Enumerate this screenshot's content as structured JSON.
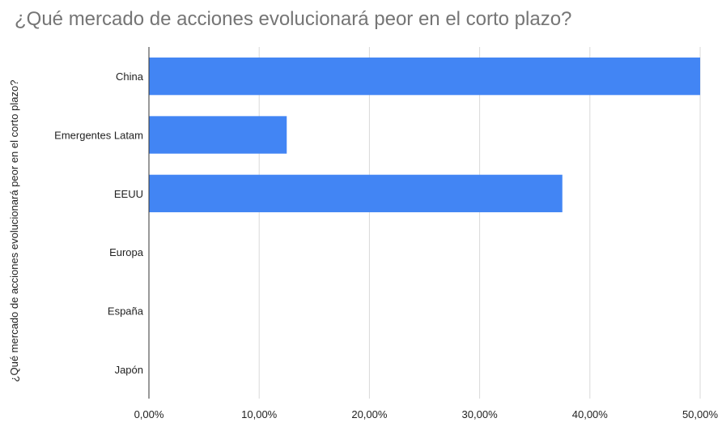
{
  "chart_data": {
    "type": "bar",
    "orientation": "horizontal",
    "title": "¿Qué mercado de acciones evolucionará peor en el corto plazo?",
    "ylabel": "¿Qué mercado de acciones evolucionará peor en el corto plazo?",
    "xlabel": "",
    "categories": [
      "China",
      "Emergentes Latam",
      "EEUU",
      "Europa",
      "España",
      "Japón"
    ],
    "values": [
      50.0,
      12.5,
      37.5,
      0,
      0,
      0
    ],
    "xlim": [
      0,
      50
    ],
    "x_ticks": [
      0,
      10,
      20,
      30,
      40,
      50
    ],
    "x_tick_labels": [
      "0,00%",
      "10,00%",
      "20,00%",
      "30,00%",
      "40,00%",
      "50,00%"
    ],
    "grid": true,
    "legend": "none",
    "bar_color": "#4285f4"
  }
}
